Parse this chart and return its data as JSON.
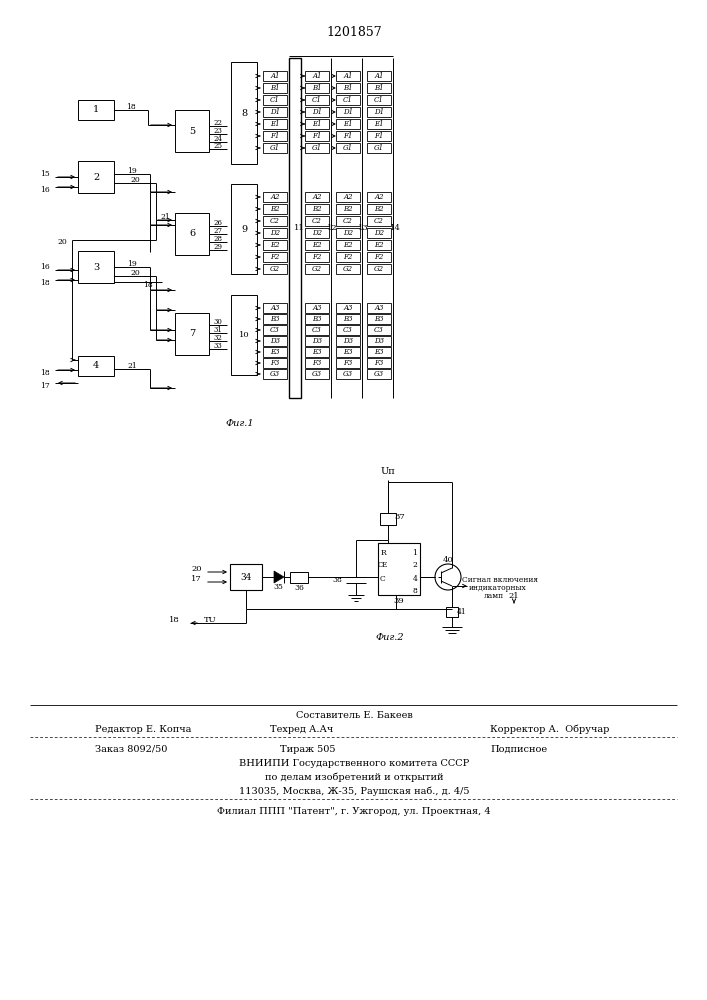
{
  "title": "1201857",
  "fig1_label": "Фиг.1",
  "fig2_label": "Фиг.2",
  "background": "#ffffff",
  "segs1": [
    "A1",
    "B1",
    "C1",
    "D1",
    "E1",
    "F1",
    "G1"
  ],
  "segs2": [
    "A2",
    "B2",
    "C2",
    "D2",
    "E2",
    "F2",
    "G2"
  ],
  "segs3": [
    "A3",
    "B3",
    "C3",
    "D3",
    "E3",
    "F3",
    "G3"
  ],
  "footer": {
    "line1_center": "Составитель Е. Бакеев",
    "line2_left": "Редактор Е. Копча",
    "line2_center": "Техред А.Ач",
    "line2_right": "Корректор А.  Обручар",
    "line3_left": "Заказ 8092/50",
    "line3_center": "Тираж 505",
    "line3_right": "Подписное",
    "line4": "ВНИИПИ Государственного комитета СССР",
    "line5": "по делам изобретений и открытий",
    "line6": "113035, Москва, Ж-35, Раушская наб., д. 4/5",
    "line7": "Филиал ППП \"Патент\", г. Ужгород, ул. Проектная, 4"
  }
}
